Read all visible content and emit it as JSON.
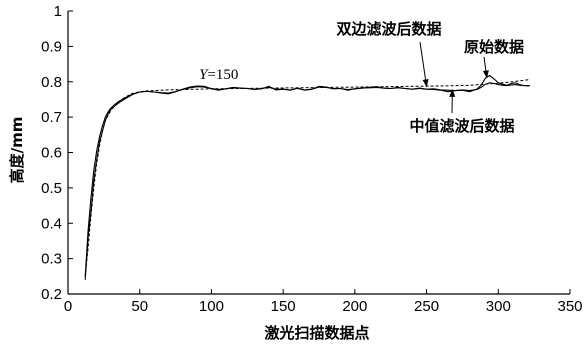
{
  "chart_data": {
    "type": "line",
    "xlabel": "激光扫描数据点",
    "ylabel": "高度/mm",
    "xlim": [
      0,
      350
    ],
    "ylim": [
      0.2,
      1
    ],
    "xticks": [
      0,
      50,
      100,
      150,
      200,
      250,
      300,
      350
    ],
    "yticks": [
      0.2,
      0.3,
      0.4,
      0.5,
      0.6,
      0.7,
      0.8,
      0.9,
      1
    ],
    "grid": false,
    "series": [
      {
        "name": "原始数据",
        "style": "solid",
        "color": "#000000",
        "points": [
          [
            12,
            0.24
          ],
          [
            14,
            0.36
          ],
          [
            16,
            0.43
          ],
          [
            18,
            0.52
          ],
          [
            20,
            0.58
          ],
          [
            22,
            0.63
          ],
          [
            24,
            0.66
          ],
          [
            26,
            0.69
          ],
          [
            28,
            0.71
          ],
          [
            30,
            0.722
          ],
          [
            33,
            0.733
          ],
          [
            36,
            0.742
          ],
          [
            40,
            0.752
          ],
          [
            45,
            0.764
          ],
          [
            50,
            0.771
          ],
          [
            55,
            0.773
          ],
          [
            60,
            0.771
          ],
          [
            65,
            0.768
          ],
          [
            70,
            0.766
          ],
          [
            75,
            0.772
          ],
          [
            80,
            0.779
          ],
          [
            85,
            0.785
          ],
          [
            90,
            0.788
          ],
          [
            95,
            0.787
          ],
          [
            100,
            0.78
          ],
          [
            105,
            0.776
          ],
          [
            110,
            0.78
          ],
          [
            115,
            0.784
          ],
          [
            120,
            0.782
          ],
          [
            125,
            0.781
          ],
          [
            130,
            0.778
          ],
          [
            135,
            0.78
          ],
          [
            140,
            0.787
          ],
          [
            145,
            0.777
          ],
          [
            150,
            0.779
          ],
          [
            155,
            0.776
          ],
          [
            160,
            0.782
          ],
          [
            165,
            0.776
          ],
          [
            170,
            0.779
          ],
          [
            175,
            0.787
          ],
          [
            180,
            0.785
          ],
          [
            185,
            0.78
          ],
          [
            190,
            0.781
          ],
          [
            195,
            0.776
          ],
          [
            200,
            0.78
          ],
          [
            205,
            0.782
          ],
          [
            210,
            0.784
          ],
          [
            215,
            0.786
          ],
          [
            220,
            0.782
          ],
          [
            225,
            0.781
          ],
          [
            230,
            0.784
          ],
          [
            235,
            0.781
          ],
          [
            240,
            0.779
          ],
          [
            245,
            0.782
          ],
          [
            250,
            0.779
          ],
          [
            255,
            0.78
          ],
          [
            260,
            0.777
          ],
          [
            265,
            0.776
          ],
          [
            270,
            0.775
          ],
          [
            275,
            0.776
          ],
          [
            280,
            0.772
          ],
          [
            285,
            0.779
          ],
          [
            288,
            0.79
          ],
          [
            291,
            0.81
          ],
          [
            294,
            0.818
          ],
          [
            297,
            0.808
          ],
          [
            300,
            0.797
          ],
          [
            303,
            0.793
          ],
          [
            306,
            0.79
          ],
          [
            309,
            0.795
          ],
          [
            312,
            0.797
          ],
          [
            315,
            0.792
          ],
          [
            318,
            0.789
          ],
          [
            322,
            0.788
          ]
        ]
      },
      {
        "name": "双边滤波后数据",
        "style": "dashed",
        "color": "#000000",
        "points": [
          [
            12,
            0.25
          ],
          [
            14,
            0.33
          ],
          [
            16,
            0.42
          ],
          [
            18,
            0.5
          ],
          [
            20,
            0.57
          ],
          [
            22,
            0.62
          ],
          [
            24,
            0.66
          ],
          [
            26,
            0.69
          ],
          [
            28,
            0.705
          ],
          [
            30,
            0.72
          ],
          [
            33,
            0.733
          ],
          [
            36,
            0.745
          ],
          [
            40,
            0.757
          ],
          [
            45,
            0.767
          ],
          [
            50,
            0.772
          ],
          [
            55,
            0.774
          ],
          [
            60,
            0.775
          ],
          [
            65,
            0.776
          ],
          [
            70,
            0.777
          ],
          [
            80,
            0.778
          ],
          [
            90,
            0.779
          ],
          [
            100,
            0.78
          ],
          [
            120,
            0.781
          ],
          [
            140,
            0.782
          ],
          [
            160,
            0.783
          ],
          [
            180,
            0.784
          ],
          [
            200,
            0.785
          ],
          [
            220,
            0.786
          ],
          [
            240,
            0.787
          ],
          [
            260,
            0.788
          ],
          [
            280,
            0.79
          ],
          [
            290,
            0.793
          ],
          [
            300,
            0.796
          ],
          [
            310,
            0.8
          ],
          [
            322,
            0.806
          ]
        ]
      },
      {
        "name": "中值滤波后数据",
        "style": "solid",
        "color": "#000000",
        "points": [
          [
            12,
            0.25
          ],
          [
            14,
            0.38
          ],
          [
            16,
            0.47
          ],
          [
            18,
            0.55
          ],
          [
            20,
            0.605
          ],
          [
            22,
            0.645
          ],
          [
            24,
            0.675
          ],
          [
            26,
            0.7
          ],
          [
            28,
            0.715
          ],
          [
            30,
            0.726
          ],
          [
            33,
            0.737
          ],
          [
            36,
            0.746
          ],
          [
            40,
            0.755
          ],
          [
            45,
            0.765
          ],
          [
            50,
            0.771
          ],
          [
            55,
            0.773
          ],
          [
            60,
            0.771
          ],
          [
            65,
            0.769
          ],
          [
            70,
            0.768
          ],
          [
            75,
            0.772
          ],
          [
            80,
            0.778
          ],
          [
            85,
            0.783
          ],
          [
            90,
            0.786
          ],
          [
            95,
            0.785
          ],
          [
            100,
            0.781
          ],
          [
            105,
            0.778
          ],
          [
            110,
            0.78
          ],
          [
            115,
            0.783
          ],
          [
            120,
            0.782
          ],
          [
            125,
            0.781
          ],
          [
            130,
            0.779
          ],
          [
            135,
            0.781
          ],
          [
            140,
            0.784
          ],
          [
            145,
            0.779
          ],
          [
            150,
            0.779
          ],
          [
            155,
            0.777
          ],
          [
            160,
            0.781
          ],
          [
            165,
            0.777
          ],
          [
            170,
            0.779
          ],
          [
            175,
            0.785
          ],
          [
            180,
            0.784
          ],
          [
            185,
            0.781
          ],
          [
            190,
            0.781
          ],
          [
            195,
            0.778
          ],
          [
            200,
            0.78
          ],
          [
            205,
            0.782
          ],
          [
            210,
            0.783
          ],
          [
            215,
            0.784
          ],
          [
            220,
            0.782
          ],
          [
            225,
            0.781
          ],
          [
            230,
            0.783
          ],
          [
            235,
            0.781
          ],
          [
            240,
            0.779
          ],
          [
            245,
            0.781
          ],
          [
            250,
            0.779
          ],
          [
            255,
            0.778
          ],
          [
            260,
            0.776
          ],
          [
            265,
            0.772
          ],
          [
            270,
            0.775
          ],
          [
            275,
            0.777
          ],
          [
            280,
            0.775
          ],
          [
            285,
            0.778
          ],
          [
            288,
            0.784
          ],
          [
            291,
            0.793
          ],
          [
            294,
            0.797
          ],
          [
            297,
            0.795
          ],
          [
            300,
            0.792
          ],
          [
            303,
            0.79
          ],
          [
            306,
            0.789
          ],
          [
            309,
            0.791
          ],
          [
            312,
            0.792
          ],
          [
            315,
            0.79
          ],
          [
            318,
            0.789
          ],
          [
            322,
            0.789
          ]
        ]
      }
    ],
    "annotations": [
      {
        "text": "双边滤波后数据",
        "target": [
          250,
          0.787
        ]
      },
      {
        "text": "原始数据",
        "target": [
          292,
          0.812
        ]
      },
      {
        "text": "中值滤波后数据",
        "target": [
          268,
          0.777
        ]
      }
    ],
    "param_label": {
      "var": "Y",
      "rest": "=150",
      "at": [
        90,
        0.8
      ]
    }
  }
}
